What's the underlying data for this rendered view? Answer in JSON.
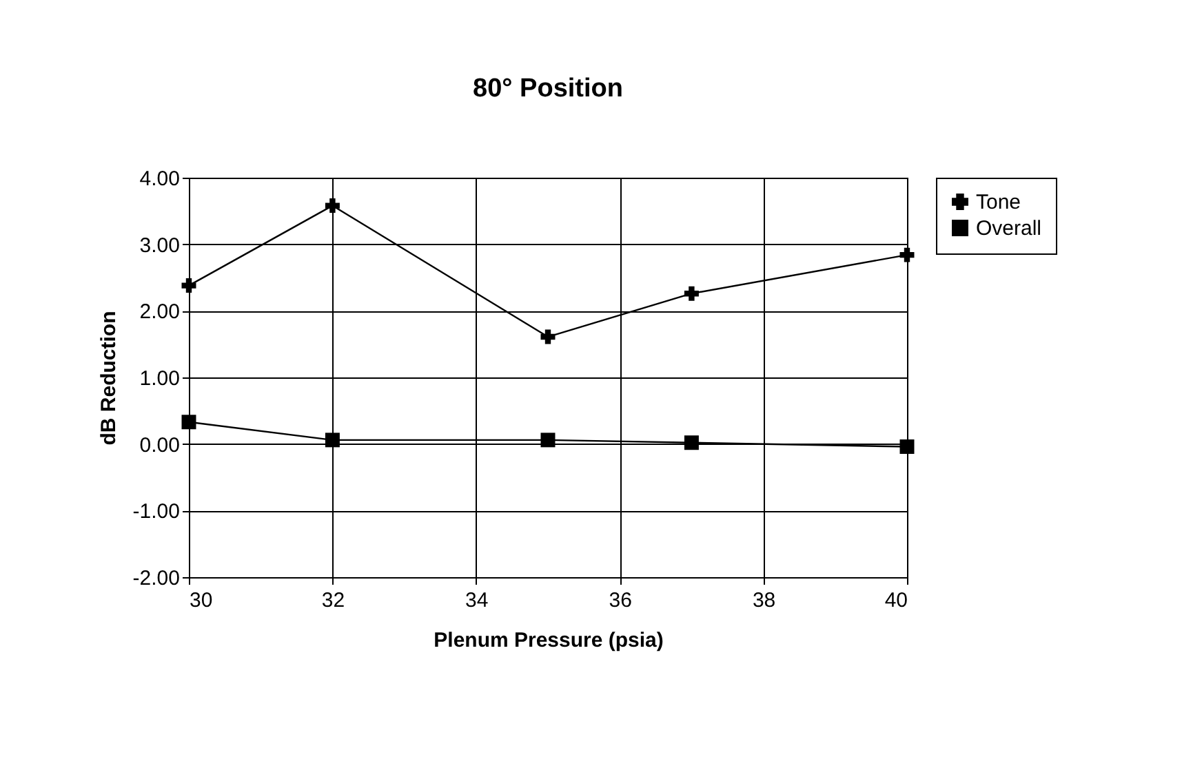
{
  "chart_data": {
    "type": "line",
    "title": "80° Position",
    "xlabel": "Plenum Pressure (psia)",
    "ylabel": "dB Reduction",
    "x": [
      30,
      32,
      35,
      37,
      40
    ],
    "series": [
      {
        "name": "Tone",
        "color": "#000000",
        "marker": "cross",
        "values": [
          2.38,
          3.58,
          1.61,
          2.26,
          2.84
        ]
      },
      {
        "name": "Overall",
        "color": "#000000",
        "marker": "square",
        "values": [
          0.33,
          0.06,
          0.06,
          0.02,
          -0.04
        ]
      }
    ],
    "xlim": [
      30,
      40
    ],
    "xticks": [
      30,
      32,
      34,
      36,
      38,
      40
    ],
    "ylim": [
      -2,
      4
    ],
    "yticks": [
      {
        "value": -2,
        "label": "-2.00"
      },
      {
        "value": -1,
        "label": "-1.00"
      },
      {
        "value": 0,
        "label": "0.00"
      },
      {
        "value": 1,
        "label": "1.00"
      },
      {
        "value": 2,
        "label": "2.00"
      },
      {
        "value": 3,
        "label": "3.00"
      },
      {
        "value": 4,
        "label": "4.00"
      }
    ],
    "grid": true,
    "legend": "right"
  }
}
